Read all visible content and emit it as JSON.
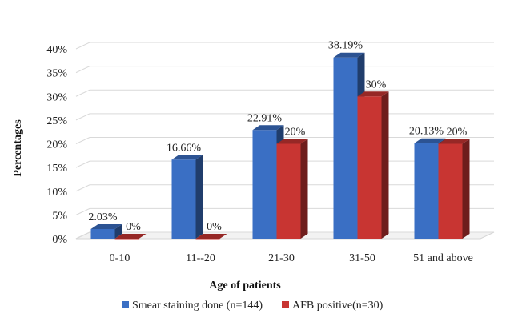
{
  "chart_data": {
    "type": "bar",
    "title": "",
    "xlabel": "Age of patients",
    "ylabel": "Percentages",
    "categories": [
      "0-10",
      "11--20",
      "21-30",
      "31-50",
      "51 and above"
    ],
    "ylim": [
      0,
      40
    ],
    "yticks": [
      "0%",
      "5%",
      "10%",
      "15%",
      "20%",
      "25%",
      "30%",
      "35%",
      "40%"
    ],
    "grid": true,
    "legend_position": "bottom",
    "style": "3d-clustered-column",
    "series": [
      {
        "name": "Smear staining done (n=144)",
        "color": "#3a6fc4",
        "values": [
          2.03,
          16.66,
          22.91,
          38.19,
          20.13
        ],
        "labels": [
          "2.03%",
          "16.66%",
          "22.91%",
          "38.19%",
          "20.13%"
        ]
      },
      {
        "name": "AFB positive(n=30)",
        "color": "#c83532",
        "values": [
          0,
          0,
          20,
          30,
          20
        ],
        "labels": [
          "0%",
          "0%",
          "20%",
          "30%",
          "20%"
        ]
      }
    ]
  }
}
